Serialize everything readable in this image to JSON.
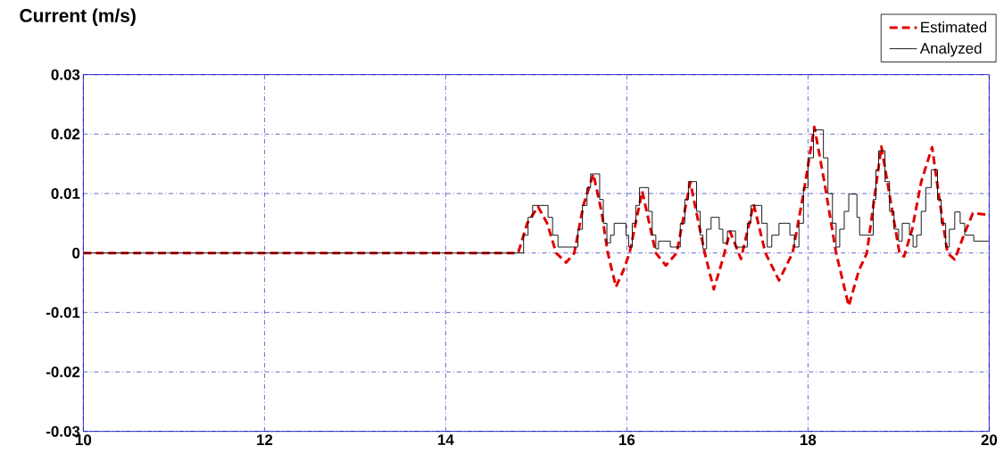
{
  "chart_data": {
    "type": "line",
    "ylabel": "Current (m/s)",
    "xlim": [
      10,
      20
    ],
    "xticks": [
      10,
      12,
      14,
      16,
      18,
      20
    ],
    "ylim": [
      -0.03,
      0.03
    ],
    "yticks": [
      -0.03,
      -0.02,
      -0.01,
      0,
      0.01,
      0.02,
      0.03
    ],
    "grid": true,
    "legend": "top right",
    "series": [
      {
        "name": "Estimated",
        "color": "#e00000",
        "line_style": "dashed",
        "x": [
          10,
          14.8,
          14.9,
          15.02,
          15.12,
          15.22,
          15.33,
          15.42,
          15.52,
          15.63,
          15.72,
          15.79,
          15.88,
          15.96,
          16.03,
          16.17,
          16.32,
          16.43,
          16.55,
          16.7,
          16.86,
          16.96,
          17.06,
          17.14,
          17.26,
          17.4,
          17.53,
          17.68,
          17.83,
          17.95,
          18.07,
          18.18,
          18.31,
          18.45,
          18.56,
          18.65,
          18.81,
          18.92,
          19.01,
          19.06,
          19.15,
          19.25,
          19.37,
          19.46,
          19.54,
          19.62,
          19.72,
          19.82,
          20.0
        ],
        "values": [
          0,
          0,
          0.005,
          0.0078,
          0.005,
          0,
          -0.0016,
          0,
          0.008,
          0.0133,
          0.007,
          0,
          -0.0057,
          -0.003,
          0,
          0.0104,
          0,
          -0.0021,
          0,
          0.0119,
          0,
          -0.0061,
          -0.001,
          0.0036,
          -0.001,
          0.0082,
          0,
          -0.0046,
          0,
          0.01,
          0.0212,
          0.012,
          0,
          -0.0089,
          -0.003,
          0,
          0.0179,
          0.008,
          0,
          -0.0006,
          0.004,
          0.012,
          0.0178,
          0.008,
          0,
          -0.0011,
          0.003,
          0.0067,
          0.0064
        ]
      },
      {
        "name": "Analyzed",
        "color": "#000000",
        "type": "step",
        "line_style": "solid",
        "x": [
          10,
          14.81,
          14.86,
          14.91,
          14.96,
          15.09,
          15.13,
          15.18,
          15.24,
          15.42,
          15.46,
          15.51,
          15.56,
          15.6,
          15.66,
          15.7,
          15.74,
          15.78,
          15.82,
          15.86,
          15.96,
          15.99,
          16.02,
          16.06,
          16.1,
          16.14,
          16.2,
          16.24,
          16.28,
          16.32,
          16.35,
          16.45,
          16.48,
          16.55,
          16.59,
          16.64,
          16.68,
          16.73,
          16.77,
          16.81,
          16.84,
          16.88,
          16.93,
          16.98,
          17.02,
          17.06,
          17.11,
          17.17,
          17.2,
          17.3,
          17.33,
          17.37,
          17.45,
          17.49,
          17.55,
          17.6,
          17.68,
          17.75,
          17.8,
          17.85,
          17.9,
          17.95,
          18.0,
          18.06,
          18.125,
          18.17,
          18.22,
          18.27,
          18.31,
          18.35,
          18.4,
          18.45,
          18.5,
          18.54,
          18.57,
          18.68,
          18.72,
          18.75,
          18.78,
          18.81,
          18.85,
          18.9,
          18.95,
          19.0,
          19.04,
          19.09,
          19.12,
          19.16,
          19.2,
          19.25,
          19.3,
          19.36,
          19.39,
          19.43,
          19.47,
          19.52,
          19.56,
          19.62,
          19.64,
          19.68,
          19.73,
          19.83,
          20.0
        ],
        "values": [
          0,
          0,
          0.003,
          0.006,
          0.008,
          0.008,
          0.006,
          0.003,
          0.001,
          0.001,
          0.004,
          0.008,
          0.011,
          0.0133,
          0.0133,
          0.009,
          0.005,
          0.0017,
          0.003,
          0.005,
          0.005,
          0.003,
          0.001,
          0.005,
          0.008,
          0.011,
          0.011,
          0.007,
          0.003,
          0.0007,
          0.002,
          0.002,
          0.001,
          0.001,
          0.005,
          0.009,
          0.012,
          0.012,
          0.007,
          0.003,
          0.0007,
          0.004,
          0.006,
          0.006,
          0.004,
          0.0017,
          0.0037,
          0.0037,
          0.001,
          0.001,
          0.005,
          0.008,
          0.008,
          0.005,
          0.001,
          0.003,
          0.005,
          0.005,
          0.003,
          0.001,
          0.005,
          0.011,
          0.016,
          0.0207,
          0.0207,
          0.016,
          0.01,
          0.005,
          0.001,
          0.004,
          0.007,
          0.0099,
          0.0099,
          0.006,
          0.003,
          0.003,
          0.009,
          0.014,
          0.0172,
          0.0172,
          0.012,
          0.007,
          0.004,
          0.002,
          0.005,
          0.005,
          0.003,
          0.001,
          0.003,
          0.007,
          0.011,
          0.014,
          0.014,
          0.009,
          0.005,
          0.001,
          0.004,
          0.0069,
          0.0069,
          0.005,
          0.003,
          0.002,
          0.002
        ]
      }
    ]
  }
}
